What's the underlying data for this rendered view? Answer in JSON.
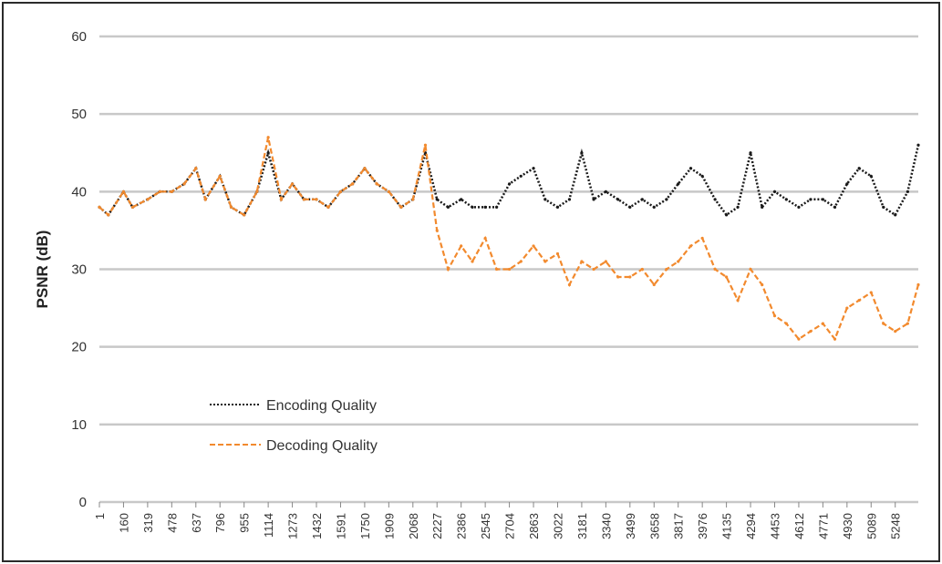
{
  "chart_data": {
    "type": "line",
    "title": "",
    "xlabel": "",
    "ylabel": "PSNR (dB)",
    "ylim": [
      0,
      60
    ],
    "yticks": [
      0,
      10,
      20,
      30,
      40,
      50,
      60
    ],
    "xlim": [
      1,
      5400
    ],
    "xticks": [
      1,
      160,
      319,
      478,
      637,
      796,
      955,
      1114,
      1273,
      1432,
      1591,
      1750,
      1909,
      2068,
      2227,
      2386,
      2545,
      2704,
      2863,
      3022,
      3181,
      3340,
      3499,
      3658,
      3817,
      3976,
      4135,
      4294,
      4453,
      4612,
      4771,
      4930,
      5089,
      5248
    ],
    "grid": "horizontal",
    "legend_position": "bottom-left",
    "series": [
      {
        "name": "Encoding Quality",
        "color": "#1a1a1a",
        "style": "dotted",
        "x": [
          1,
          60,
          160,
          220,
          319,
          400,
          478,
          560,
          637,
          700,
          796,
          870,
          955,
          1040,
          1114,
          1200,
          1273,
          1350,
          1432,
          1510,
          1591,
          1670,
          1750,
          1830,
          1909,
          1990,
          2068,
          2150,
          2227,
          2300,
          2386,
          2460,
          2545,
          2620,
          2704,
          2780,
          2863,
          2940,
          3022,
          3100,
          3181,
          3260,
          3340,
          3420,
          3499,
          3580,
          3658,
          3740,
          3817,
          3900,
          3976,
          4060,
          4135,
          4210,
          4294,
          4370,
          4453,
          4530,
          4612,
          4690,
          4771,
          4850,
          4930,
          5010,
          5089,
          5170,
          5248,
          5330,
          5400
        ],
        "y": [
          38,
          37,
          40,
          38,
          39,
          40,
          40,
          41,
          43,
          39,
          42,
          38,
          37,
          40,
          45,
          39,
          41,
          39,
          39,
          38,
          40,
          41,
          43,
          41,
          40,
          38,
          39,
          45,
          39,
          38,
          39,
          38,
          38,
          38,
          41,
          42,
          43,
          39,
          38,
          39,
          45,
          39,
          40,
          39,
          38,
          39,
          38,
          39,
          41,
          43,
          42,
          39,
          37,
          38,
          45,
          38,
          40,
          39,
          38,
          39,
          39,
          38,
          41,
          43,
          42,
          38,
          37,
          40,
          46
        ]
      },
      {
        "name": "Decoding Quality",
        "color": "#f28a2e",
        "style": "dashed",
        "x": [
          1,
          60,
          160,
          220,
          319,
          400,
          478,
          560,
          637,
          700,
          796,
          870,
          955,
          1040,
          1114,
          1200,
          1273,
          1350,
          1432,
          1510,
          1591,
          1670,
          1750,
          1830,
          1909,
          1990,
          2068,
          2150,
          2227,
          2300,
          2386,
          2460,
          2545,
          2620,
          2704,
          2780,
          2863,
          2940,
          3022,
          3100,
          3181,
          3260,
          3340,
          3420,
          3499,
          3580,
          3658,
          3740,
          3817,
          3900,
          3976,
          4060,
          4135,
          4210,
          4294,
          4370,
          4453,
          4530,
          4612,
          4690,
          4771,
          4850,
          4930,
          5010,
          5089,
          5170,
          5248,
          5330,
          5400
        ],
        "y": [
          38,
          37,
          40,
          38,
          39,
          40,
          40,
          41,
          43,
          39,
          42,
          38,
          37,
          40,
          47,
          39,
          41,
          39,
          39,
          38,
          40,
          41,
          43,
          41,
          40,
          38,
          39,
          46,
          35,
          30,
          33,
          31,
          34,
          30,
          30,
          31,
          33,
          31,
          32,
          28,
          31,
          30,
          31,
          29,
          29,
          30,
          28,
          30,
          31,
          33,
          34,
          30,
          29,
          26,
          30,
          28,
          24,
          23,
          21,
          22,
          23,
          21,
          25,
          26,
          27,
          23,
          22,
          23,
          28
        ]
      }
    ]
  }
}
